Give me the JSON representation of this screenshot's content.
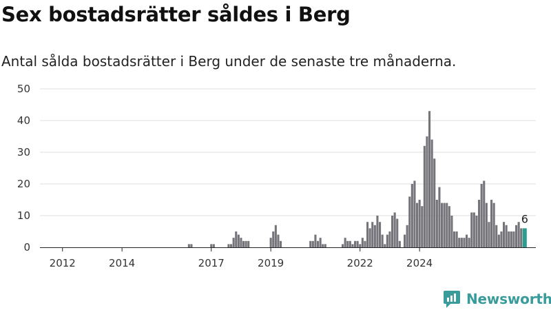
{
  "title": "Sex bostadsrätter såldes i Berg",
  "subtitle": "Antal sålda bostadsrätter i Berg under de senaste tre månaderna.",
  "brand": {
    "name": "Newsworthy",
    "icon": "newsworthy-logo-icon",
    "color": "#3a9b9b"
  },
  "colors": {
    "bar": "#75747a",
    "highlight": "#2a9d8f",
    "grid": "#dddddd",
    "axis": "#222222"
  },
  "chart_data": {
    "type": "bar",
    "title": "Sex bostadsrätter såldes i Berg",
    "subtitle": "Antal sålda bostadsrätter i Berg under de senaste tre månaderna.",
    "xlabel": "",
    "ylabel": "",
    "ylim": [
      0,
      50
    ],
    "y_ticks": [
      0,
      10,
      20,
      30,
      40,
      50
    ],
    "grid": true,
    "legend": "none",
    "x_ticks": [
      {
        "label": "2012",
        "year": 2012
      },
      {
        "label": "2014",
        "year": 2014
      },
      {
        "label": "2017",
        "year": 2017
      },
      {
        "label": "2019",
        "year": 2019
      },
      {
        "label": "2022",
        "year": 2022
      },
      {
        "label": "2024",
        "year": 2024
      }
    ],
    "period": "rolling 3-month count, monthly",
    "start": "2011-06",
    "values": [
      0,
      0,
      0,
      0,
      0,
      0,
      0,
      0,
      0,
      0,
      0,
      0,
      0,
      0,
      0,
      0,
      0,
      0,
      0,
      0,
      0,
      0,
      0,
      0,
      0,
      0,
      0,
      0,
      0,
      0,
      0,
      0,
      0,
      0,
      0,
      0,
      0,
      0,
      0,
      0,
      0,
      0,
      0,
      0,
      0,
      0,
      0,
      0,
      0,
      0,
      0,
      0,
      0,
      0,
      0,
      0,
      0,
      0,
      1,
      1,
      0,
      0,
      0,
      0,
      0,
      0,
      0,
      1,
      1,
      0,
      0,
      0,
      0,
      0,
      1,
      1,
      3,
      5,
      4,
      3,
      2,
      2,
      2,
      0,
      0,
      0,
      0,
      0,
      0,
      0,
      0,
      3,
      5,
      7,
      4,
      2,
      0,
      0,
      0,
      0,
      0,
      0,
      0,
      0,
      0,
      0,
      0,
      2,
      2,
      4,
      2,
      3,
      1,
      1,
      0,
      0,
      0,
      0,
      0,
      0,
      1,
      3,
      2,
      2,
      1,
      2,
      2,
      1,
      3,
      2,
      8,
      6,
      8,
      7,
      10,
      8,
      4,
      1,
      4,
      5,
      10,
      11,
      9,
      2,
      0,
      4,
      7,
      16,
      20,
      21,
      14,
      15,
      13,
      32,
      35,
      43,
      34,
      28,
      15,
      19,
      14,
      14,
      14,
      13,
      10,
      5,
      5,
      3,
      3,
      3,
      4,
      3,
      11,
      11,
      10,
      15,
      20,
      21,
      14,
      8,
      15,
      14,
      7,
      4,
      5,
      8,
      7,
      5,
      5,
      5,
      7,
      8,
      6,
      6
    ],
    "highlight": {
      "last": true,
      "label": "6"
    }
  }
}
